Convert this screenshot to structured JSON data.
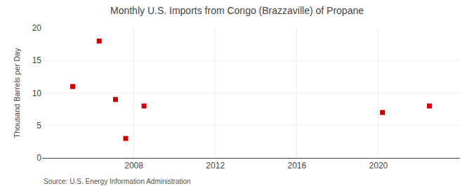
{
  "chart_data": {
    "type": "scatter",
    "title": "Monthly U.S. Imports from Congo (Brazzaville) of Propane",
    "y_label": "Thousand Barrels per Day",
    "annotations": [
      "Source: U.S. Energy Information Administration"
    ],
    "x": [
      2005.0,
      2006.3,
      2007.1,
      2007.6,
      2008.5,
      2020.2,
      2022.5
    ],
    "values": [
      11,
      18,
      9,
      3,
      8,
      7,
      8
    ],
    "color": "#cc0000",
    "marker": "square",
    "xlim": [
      2003.5,
      2024
    ],
    "ylim": [
      0,
      20
    ],
    "xticks": [
      2008,
      2012,
      2016,
      2020
    ],
    "yticks": [
      0,
      5,
      10,
      15,
      20
    ],
    "grid": true
  }
}
